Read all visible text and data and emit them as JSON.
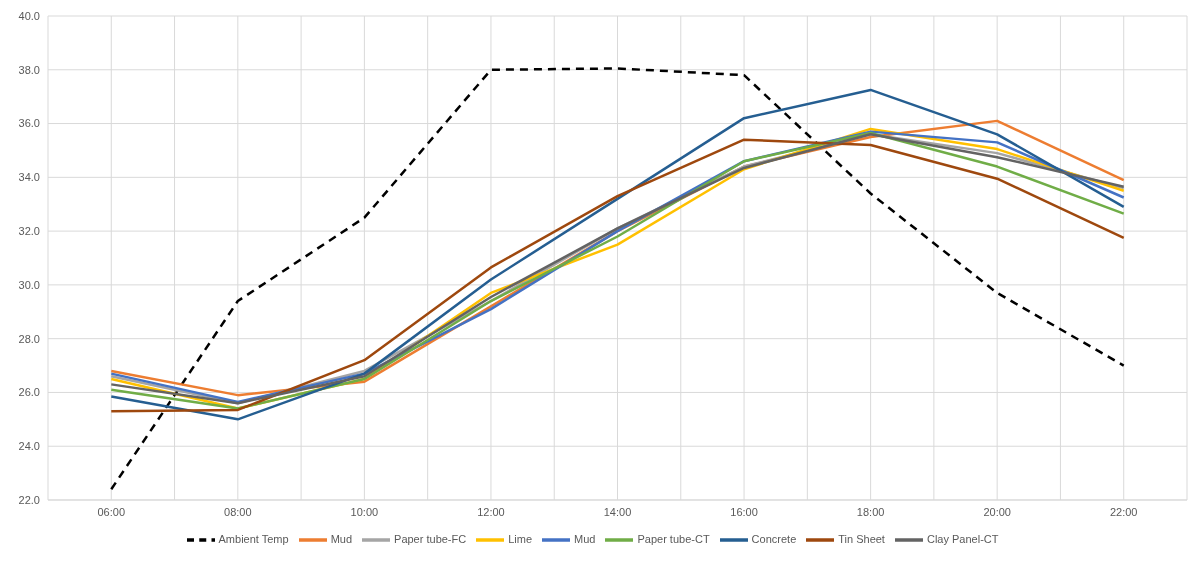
{
  "chart_data": {
    "type": "line",
    "x": [
      6,
      8,
      10,
      12,
      14,
      16,
      18,
      20,
      22
    ],
    "xlim": [
      5,
      23
    ],
    "xticks": [
      {
        "value": 5,
        "label": null
      },
      {
        "value": 6,
        "label": "06:00"
      },
      {
        "value": 7,
        "label": null
      },
      {
        "value": 8,
        "label": "08:00"
      },
      {
        "value": 9,
        "label": null
      },
      {
        "value": 10,
        "label": "10:00"
      },
      {
        "value": 11,
        "label": null
      },
      {
        "value": 12,
        "label": "12:00"
      },
      {
        "value": 13,
        "label": null
      },
      {
        "value": 14,
        "label": "14:00"
      },
      {
        "value": 15,
        "label": null
      },
      {
        "value": 16,
        "label": "16:00"
      },
      {
        "value": 17,
        "label": null
      },
      {
        "value": 18,
        "label": "18:00"
      },
      {
        "value": 19,
        "label": null
      },
      {
        "value": 20,
        "label": "20:00"
      },
      {
        "value": 21,
        "label": null
      },
      {
        "value": 22,
        "label": "22:00"
      },
      {
        "value": 23,
        "label": null
      }
    ],
    "ylim": [
      22,
      40
    ],
    "yticks": [
      {
        "value": 22,
        "label": "22.0"
      },
      {
        "value": 24,
        "label": "24.0"
      },
      {
        "value": 26,
        "label": "26.0"
      },
      {
        "value": 28,
        "label": "28.0"
      },
      {
        "value": 30,
        "label": "30.0"
      },
      {
        "value": 32,
        "label": "32.0"
      },
      {
        "value": 34,
        "label": "34.0"
      },
      {
        "value": 36,
        "label": "36.0"
      },
      {
        "value": 38,
        "label": "38.0"
      },
      {
        "value": 40,
        "label": "40.0"
      }
    ],
    "grid": true,
    "legend": "bottom",
    "marker": "none",
    "series": [
      {
        "name": "Ambient Temp",
        "color": "#000000",
        "line_style": "dashed",
        "values": [
          22.4,
          29.4,
          32.5,
          38.0,
          38.05,
          37.8,
          33.4,
          29.7,
          27.0
        ]
      },
      {
        "name": "Mud",
        "color": "#ed7d31",
        "values": [
          26.8,
          25.9,
          26.4,
          29.2,
          32.0,
          34.4,
          35.5,
          36.1,
          33.9
        ]
      },
      {
        "name": "Paper tube-FC",
        "color": "#a5a5a5",
        "values": [
          26.6,
          25.6,
          26.8,
          29.4,
          32.1,
          34.4,
          35.6,
          34.9,
          33.6
        ]
      },
      {
        "name": "Lime",
        "color": "#ffc000",
        "values": [
          26.5,
          25.4,
          26.5,
          29.7,
          31.5,
          34.3,
          35.8,
          35.05,
          33.5
        ]
      },
      {
        "name": "Mud",
        "color": "#4472c4",
        "values": [
          26.7,
          25.65,
          26.7,
          29.1,
          32.0,
          34.6,
          35.7,
          35.3,
          33.25
        ]
      },
      {
        "name": "Paper tube-CT",
        "color": "#70ad47",
        "values": [
          26.1,
          25.4,
          26.5,
          29.4,
          31.8,
          34.6,
          35.65,
          34.4,
          32.65
        ]
      },
      {
        "name": "Concrete",
        "color": "#255e91",
        "values": [
          25.85,
          25.0,
          26.7,
          30.2,
          33.2,
          36.2,
          37.25,
          35.6,
          32.9
        ]
      },
      {
        "name": "Tin Sheet",
        "color": "#9e480e",
        "values": [
          25.3,
          25.35,
          27.2,
          30.65,
          33.3,
          35.4,
          35.2,
          33.95,
          31.75
        ]
      },
      {
        "name": "Clay Panel-CT",
        "color": "#636363",
        "values": [
          26.3,
          25.6,
          26.6,
          29.55,
          32.1,
          34.35,
          35.6,
          34.75,
          33.65
        ]
      }
    ]
  }
}
